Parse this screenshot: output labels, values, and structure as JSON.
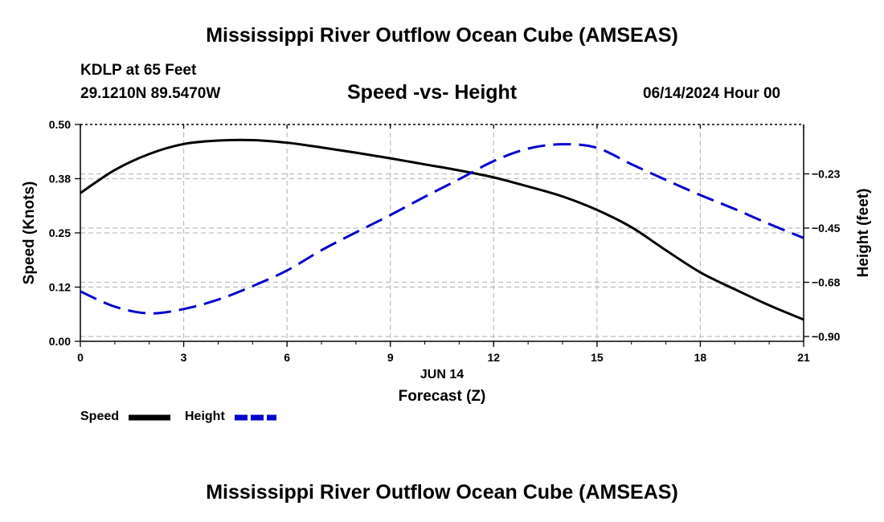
{
  "header": {
    "title": "Mississippi River Outflow Ocean Cube (AMSEAS)",
    "station": "KDLP at 65 Feet",
    "coords": "29.1210N  89.5470W",
    "subtitle": "Speed -vs- Height",
    "datestamp": "06/14/2024 Hour 00"
  },
  "footer": {
    "title": "Mississippi River Outflow Ocean Cube (AMSEAS)"
  },
  "chart_data": {
    "type": "line",
    "title": "Speed -vs- Height",
    "xlabel": "Forecast (Z)",
    "date_label": "JUN 14",
    "x_ticks": [
      "0",
      "3",
      "6",
      "9",
      "12",
      "15",
      "18",
      "21"
    ],
    "xlim": [
      0,
      21
    ],
    "left_axis": {
      "label": "Speed (Knots)",
      "ylim": [
        0,
        0.5
      ],
      "ticks": [
        {
          "value": 0.0,
          "label": "0.00"
        },
        {
          "value": 0.125,
          "label": "0.12"
        },
        {
          "value": 0.25,
          "label": "0.25"
        },
        {
          "value": 0.375,
          "label": "0.38"
        },
        {
          "value": 0.5,
          "label": "0.50"
        }
      ]
    },
    "right_axis": {
      "label": "Height (feet)",
      "ylim": [
        -0.92,
        -0.02
      ],
      "ticks": [
        {
          "value": -0.9,
          "label": "-0.90"
        },
        {
          "value": -0.675,
          "label": "-0.68"
        },
        {
          "value": -0.45,
          "label": "-0.45"
        },
        {
          "value": -0.225,
          "label": "-0.23"
        }
      ]
    },
    "grid": true,
    "series": [
      {
        "name": "Speed",
        "axis": "left",
        "color": "#000000",
        "dashed": false,
        "x": [
          0,
          1,
          2,
          3,
          4,
          5,
          6,
          7,
          8,
          9,
          10,
          11,
          12,
          13,
          14,
          15,
          16,
          17,
          18,
          19,
          20,
          21
        ],
        "values": [
          0.342,
          0.395,
          0.432,
          0.455,
          0.463,
          0.464,
          0.458,
          0.447,
          0.435,
          0.422,
          0.408,
          0.394,
          0.378,
          0.357,
          0.334,
          0.303,
          0.263,
          0.21,
          0.159,
          0.12,
          0.083,
          0.05
        ]
      },
      {
        "name": "Height",
        "axis": "right",
        "color": "#0000cc",
        "dashed": true,
        "x": [
          0,
          1,
          2,
          3,
          4,
          5,
          6,
          7,
          8,
          9,
          10,
          11,
          12,
          13,
          14,
          15,
          16,
          17,
          18,
          19,
          20,
          21
        ],
        "values": [
          -0.713,
          -0.776,
          -0.804,
          -0.786,
          -0.747,
          -0.691,
          -0.626,
          -0.542,
          -0.468,
          -0.396,
          -0.32,
          -0.247,
          -0.172,
          -0.12,
          -0.102,
          -0.117,
          -0.185,
          -0.25,
          -0.313,
          -0.371,
          -0.433,
          -0.491
        ]
      }
    ],
    "legend": [
      {
        "label": "Speed",
        "color": "#000000",
        "dashed": false
      },
      {
        "label": "Height",
        "color": "#0000cc",
        "dashed": true
      }
    ]
  }
}
